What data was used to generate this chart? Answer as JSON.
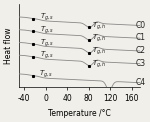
{
  "title": "",
  "xlabel": "Temperature /°C",
  "ylabel": "Heat flow",
  "xlim": [
    -50,
    175
  ],
  "ylim": [
    0.05,
    1.02
  ],
  "xticks": [
    -40,
    0,
    40,
    80,
    120,
    160
  ],
  "samples": [
    "C0",
    "C1",
    "C2",
    "C3",
    "C4"
  ],
  "curve_color": "#888888",
  "bg_color": "#f0efe9",
  "label_color": "#222222",
  "tg_s_x": [
    -28,
    -28,
    -28,
    -28,
    -28
  ],
  "tg_h_x": [
    82,
    82,
    82,
    82,
    118
  ],
  "offsets": [
    0.87,
    0.72,
    0.57,
    0.42,
    0.2
  ],
  "font_size": 5.5,
  "axis_font_size": 5.5
}
